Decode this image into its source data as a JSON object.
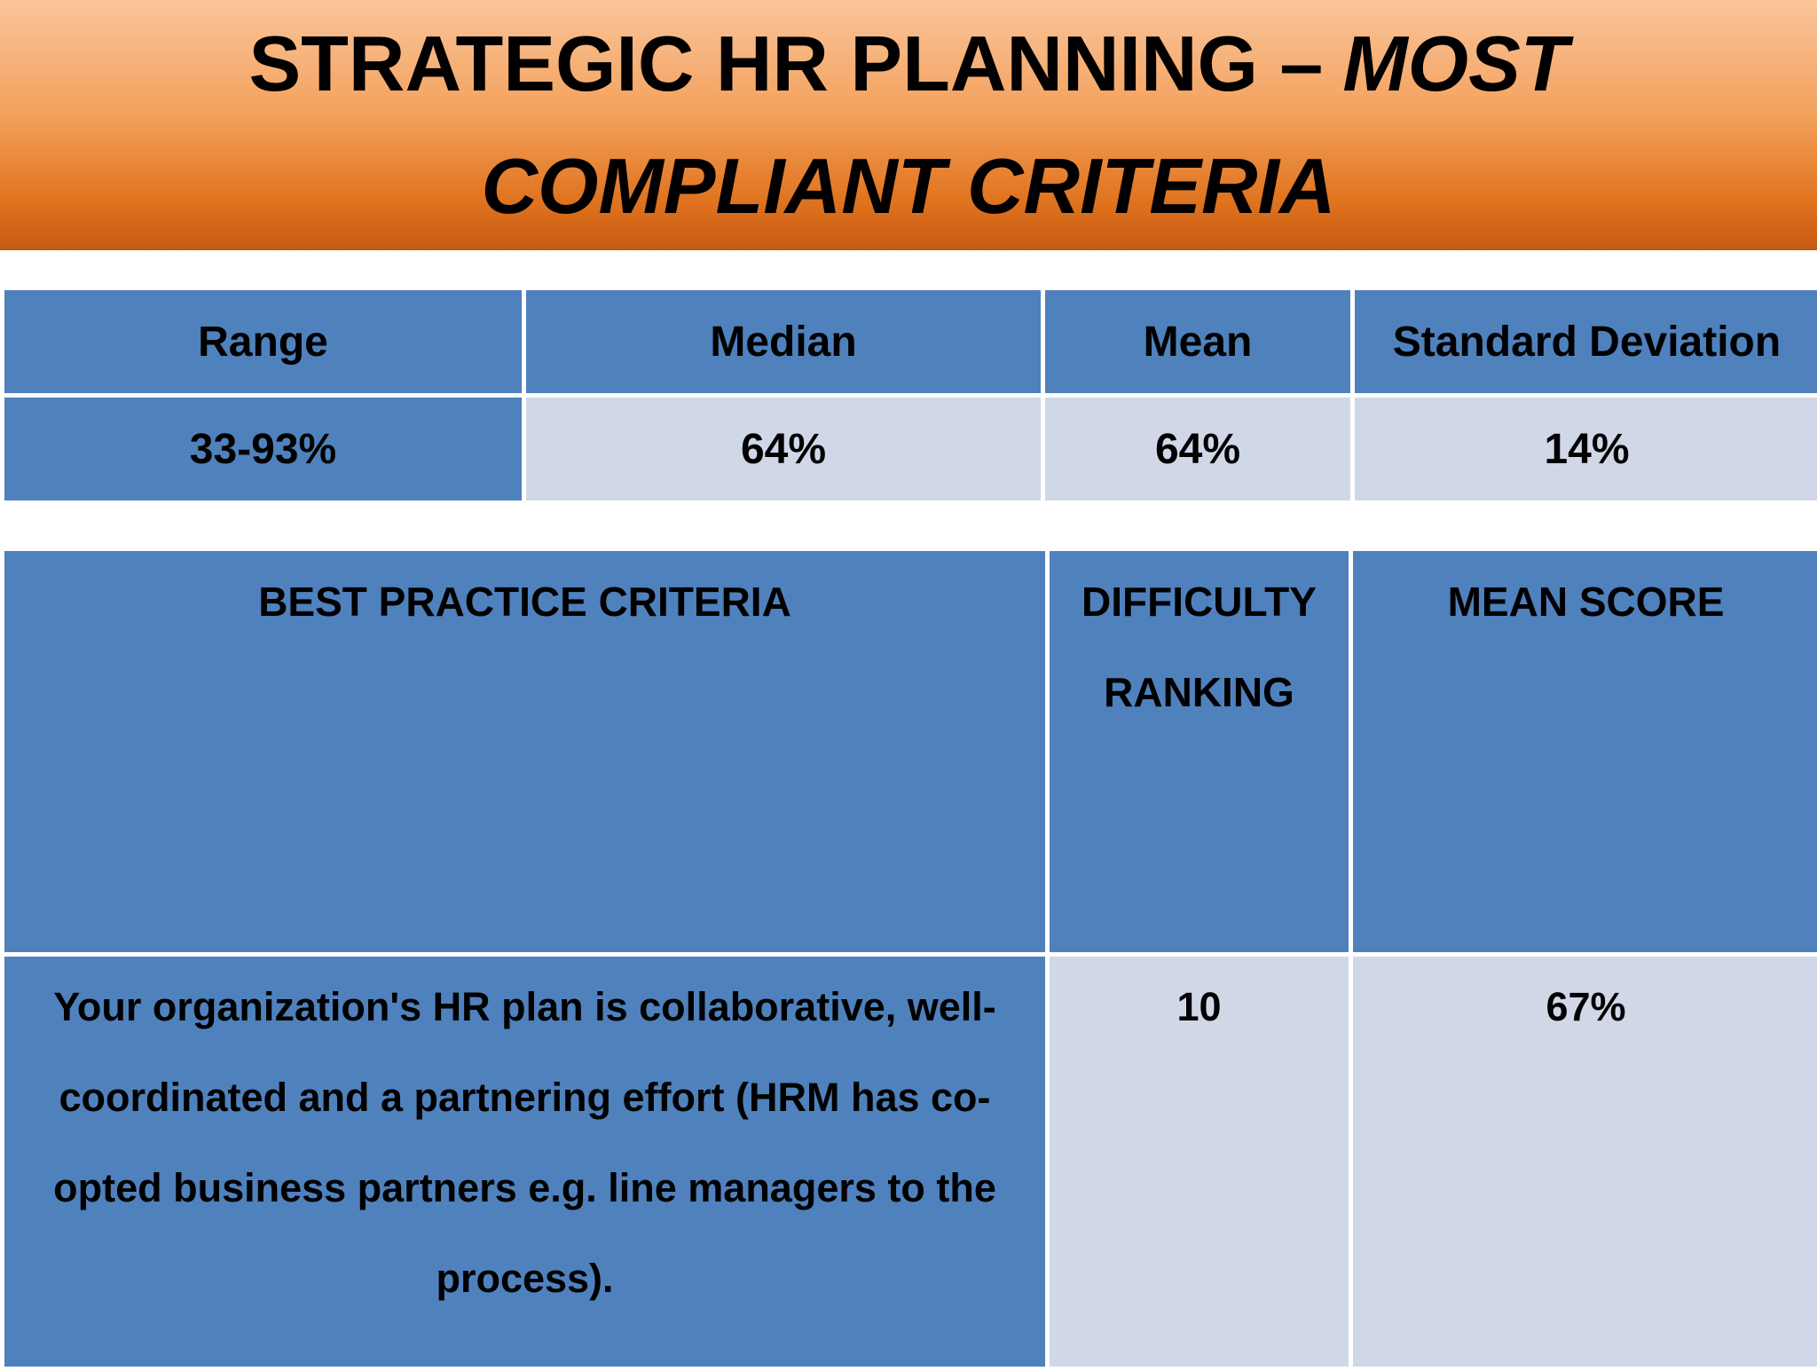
{
  "header": {
    "title_main": "STRATEGIC HR PLANNING –",
    "title_emphasis": "MOST COMPLIANT CRITERIA"
  },
  "stats_table": {
    "header": [
      "Range",
      "Median",
      "Mean",
      "Standard Deviation"
    ],
    "rows": [
      [
        "33-93%",
        "64%",
        "64%",
        "14%"
      ]
    ]
  },
  "criteria_table": {
    "header": [
      "BEST PRACTICE CRITERIA",
      "DIFFICULTY RANKING",
      "MEAN SCORE"
    ],
    "rows": [
      [
        "Your organization's HR plan is collaborative, well-coordinated and a partnering effort (HRM has co-opted business partners e.g. line managers to the process).",
        "10",
        "67%"
      ]
    ]
  }
}
